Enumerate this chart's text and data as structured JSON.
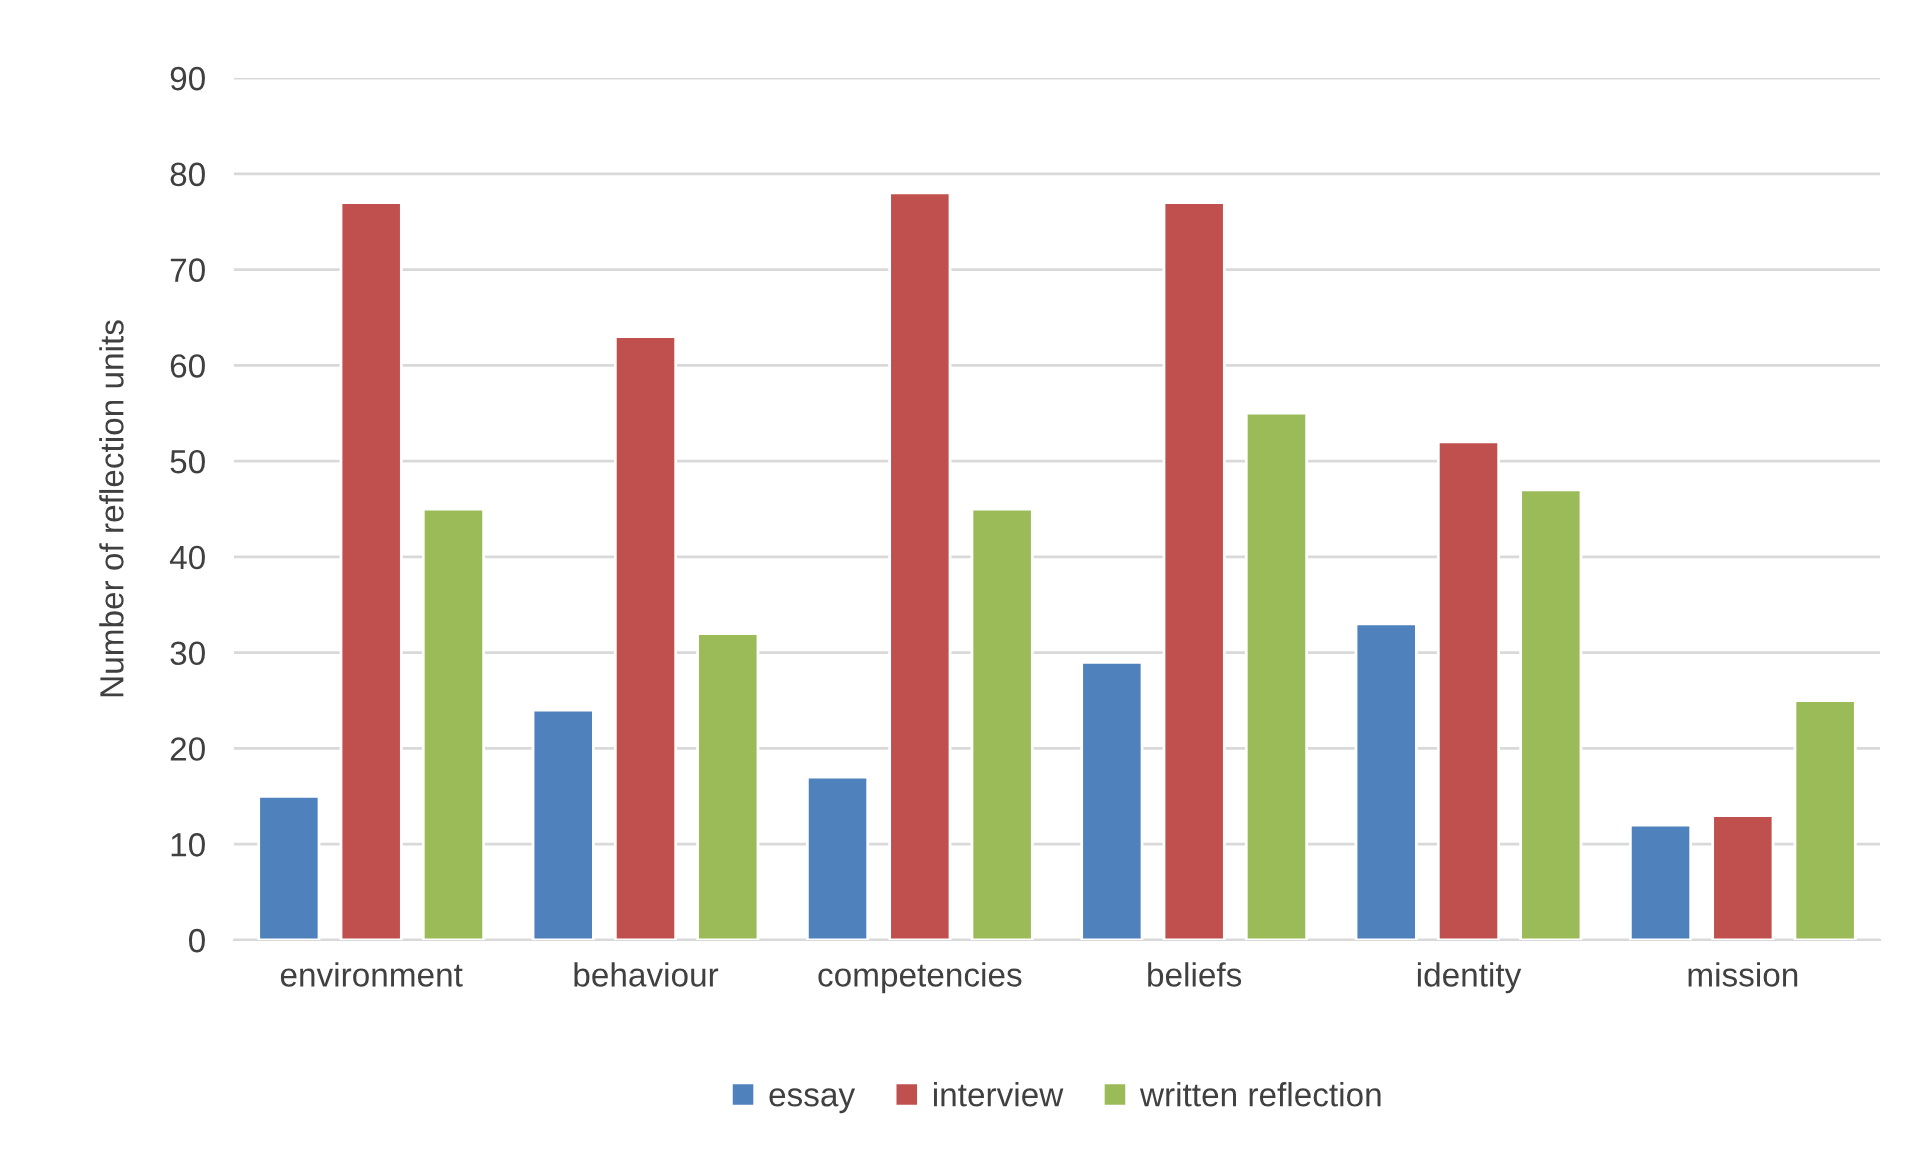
{
  "chart_data": {
    "type": "bar",
    "ylabel": "Number of reflection units",
    "categories": [
      "environment",
      "behaviour",
      "competencies",
      "beliefs",
      "identity",
      "mission"
    ],
    "series": [
      {
        "name": "essay",
        "color": "#4f81bd",
        "values": [
          15,
          24,
          17,
          29,
          33,
          12
        ]
      },
      {
        "name": "interview",
        "color": "#c0504d",
        "values": [
          77,
          63,
          78,
          77,
          52,
          13
        ]
      },
      {
        "name": "written reflection",
        "color": "#9bbb59",
        "values": [
          45,
          32,
          45,
          55,
          47,
          25
        ]
      }
    ],
    "ylim": [
      0,
      90
    ],
    "yticks": [
      0,
      10,
      20,
      30,
      40,
      50,
      60,
      70,
      80,
      90
    ],
    "grid": "y",
    "legend": "bottom"
  }
}
